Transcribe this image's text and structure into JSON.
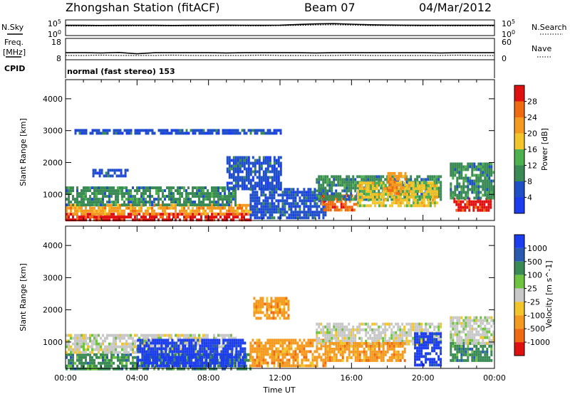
{
  "header": {
    "station_title": "Zhongshan Station (fitACF)",
    "beam": "Beam 07",
    "date": "04/Mar/2012"
  },
  "chart_data": [
    {
      "id": "nsky-nsearch",
      "type": "line",
      "left_label": "N.Sky",
      "right_label": "N.Search",
      "left_ticks": [
        "10^5",
        "10^0"
      ],
      "right_ticks": [
        "10^5",
        "10^0"
      ],
      "yscale": "log",
      "series": [
        {
          "name": "N.Sky",
          "values": [
            3.6,
            3.6,
            3.55,
            3.6,
            3.62,
            3.6,
            3.55,
            3.6,
            3.6,
            3.65,
            3.62,
            3.6,
            3.65,
            3.9,
            4.1,
            4.2,
            4.0,
            3.8,
            3.7,
            3.65,
            3.6,
            3.62,
            3.6,
            3.6,
            3.62,
            3.6
          ]
        },
        {
          "name": "N.Search",
          "values": [
            3.4,
            3.35,
            3.4,
            3.38,
            3.4,
            3.42,
            3.4,
            3.38,
            3.4,
            3.45,
            3.42,
            3.4,
            3.5,
            3.6,
            3.75,
            3.8,
            3.7,
            3.55,
            3.5,
            3.45,
            3.4,
            3.42,
            3.4,
            3.4,
            3.42,
            3.4
          ]
        }
      ],
      "x": [
        0,
        1,
        2,
        3,
        4,
        5,
        6,
        7,
        8,
        9,
        10,
        11,
        12,
        13,
        14,
        15,
        16,
        17,
        18,
        19,
        20,
        21,
        22,
        23,
        23.5,
        24
      ]
    },
    {
      "id": "freq-nave",
      "type": "line",
      "left_label_lines": [
        "Freq.",
        "[MHz]"
      ],
      "right_label": "Nave",
      "left_ticks": [
        "18",
        "8"
      ],
      "right_ticks": [
        "60",
        "0"
      ],
      "ylim_left": [
        8,
        18
      ],
      "ylim_right": [
        0,
        60
      ],
      "series": [
        {
          "name": "Freq.",
          "values": [
            11.3,
            11.3,
            11.2,
            11.4,
            10.8,
            11.3,
            11.3,
            11.3,
            11.3,
            11.2,
            11.3,
            11.3,
            11.3,
            11.3,
            11.2,
            11.3,
            11.3,
            11.3,
            11.3,
            11.3,
            11.3,
            11.2,
            11.3,
            11.3,
            11.3,
            11.3
          ]
        },
        {
          "name": "Nave",
          "values": [
            12,
            12,
            13,
            12,
            12,
            12,
            13,
            12,
            12,
            12,
            12,
            13,
            12,
            12,
            12,
            12,
            13,
            12,
            12,
            12,
            12,
            12,
            13,
            12,
            12,
            12
          ]
        }
      ],
      "x": [
        0,
        1,
        2,
        3,
        4,
        5,
        6,
        7,
        8,
        9,
        10,
        11,
        12,
        13,
        14,
        15,
        16,
        17,
        18,
        19,
        20,
        21,
        22,
        23,
        23.5,
        24
      ]
    },
    {
      "id": "cpid",
      "type": "table",
      "label": "CPID",
      "text": "normal (fast stereo) 153"
    },
    {
      "id": "power",
      "type": "heatmap",
      "ylabel": "Slant Range [km]",
      "yticks": [
        1000,
        2000,
        3000,
        4000
      ],
      "ylim": [
        180,
        4600
      ],
      "xlim": [
        0,
        24
      ],
      "colorbar": {
        "label": "Power [dB]",
        "ticks": [
          4,
          8,
          12,
          16,
          20,
          24,
          28
        ],
        "colors": [
          "#1c3cf0",
          "#2050c8",
          "#3a8a55",
          "#4fb050",
          "#f2c62a",
          "#f59a20",
          "#f06a10",
          "#e01010"
        ]
      },
      "regions": [
        {
          "x0": 0,
          "x1": 10.3,
          "r0": 200,
          "r1": 420,
          "level": 7
        },
        {
          "x0": 0,
          "x1": 10.3,
          "r0": 420,
          "r1": 700,
          "level": 5
        },
        {
          "x0": 0,
          "x1": 9.5,
          "r0": 700,
          "r1": 1250,
          "level": 2
        },
        {
          "x0": 1.5,
          "x1": 3.5,
          "r0": 1600,
          "r1": 1800,
          "level": 1
        },
        {
          "x0": 9,
          "x1": 12,
          "r0": 1200,
          "r1": 2200,
          "level": 1
        },
        {
          "x0": 10.3,
          "x1": 14.5,
          "r0": 300,
          "r1": 1200,
          "level": 1
        },
        {
          "x0": 14.3,
          "x1": 16.3,
          "r0": 500,
          "r1": 1000,
          "level": 6
        },
        {
          "x0": 14,
          "x1": 21,
          "r0": 800,
          "r1": 1600,
          "level": 2
        },
        {
          "x0": 16.3,
          "x1": 20.8,
          "r0": 600,
          "r1": 1400,
          "level": 4
        },
        {
          "x0": 18,
          "x1": 19,
          "r0": 1000,
          "r1": 1700,
          "level": 5
        },
        {
          "x0": 21.7,
          "x1": 23.8,
          "r0": 500,
          "r1": 900,
          "level": 7
        },
        {
          "x0": 21.5,
          "x1": 24,
          "r0": 900,
          "r1": 2000,
          "level": 2
        },
        {
          "x0": 0.5,
          "x1": 12,
          "r0": 2950,
          "r1": 3050,
          "level": 1
        }
      ]
    },
    {
      "id": "velocity",
      "type": "heatmap",
      "ylabel": "Slant Range [km]",
      "xlabel": "Time UT",
      "yticks": [
        1000,
        2000,
        3000,
        4000
      ],
      "ylim": [
        180,
        4600
      ],
      "xlim": [
        0,
        24
      ],
      "xticks": [
        "00:00",
        "04:00",
        "08:00",
        "12:00",
        "16:00",
        "20:00",
        "00:00"
      ],
      "colorbar": {
        "label": "Velocity [m s^-1]",
        "ticks": [
          1000,
          500,
          100,
          25,
          -25,
          -100,
          -500,
          -1000
        ],
        "colors": [
          "#1c3cf0",
          "#2a5ab0",
          "#3a8a55",
          "#6ec440",
          "#c8c8c8",
          "#f2c62a",
          "#f59a20",
          "#f06a10",
          "#e01010"
        ]
      },
      "regions": [
        {
          "x0": 0,
          "x1": 10.3,
          "r0": 200,
          "r1": 650,
          "level": 2
        },
        {
          "x0": 0,
          "x1": 9.5,
          "r0": 650,
          "r1": 1250,
          "level": 4
        },
        {
          "x0": 4,
          "x1": 10,
          "r0": 300,
          "r1": 1100,
          "level": 0
        },
        {
          "x0": 10.5,
          "x1": 12.5,
          "r0": 1700,
          "r1": 2400,
          "level": 6
        },
        {
          "x0": 10.3,
          "x1": 14.5,
          "r0": 300,
          "r1": 1100,
          "level": 6
        },
        {
          "x0": 14,
          "x1": 21,
          "r0": 900,
          "r1": 1600,
          "level": 4
        },
        {
          "x0": 14.5,
          "x1": 19,
          "r0": 400,
          "r1": 1000,
          "level": 6
        },
        {
          "x0": 19.5,
          "x1": 21,
          "r0": 300,
          "r1": 1300,
          "level": 0
        },
        {
          "x0": 21.5,
          "x1": 23.8,
          "r0": 400,
          "r1": 1000,
          "level": 2
        },
        {
          "x0": 21.5,
          "x1": 24,
          "r0": 1000,
          "r1": 1800,
          "level": 4
        }
      ]
    }
  ]
}
